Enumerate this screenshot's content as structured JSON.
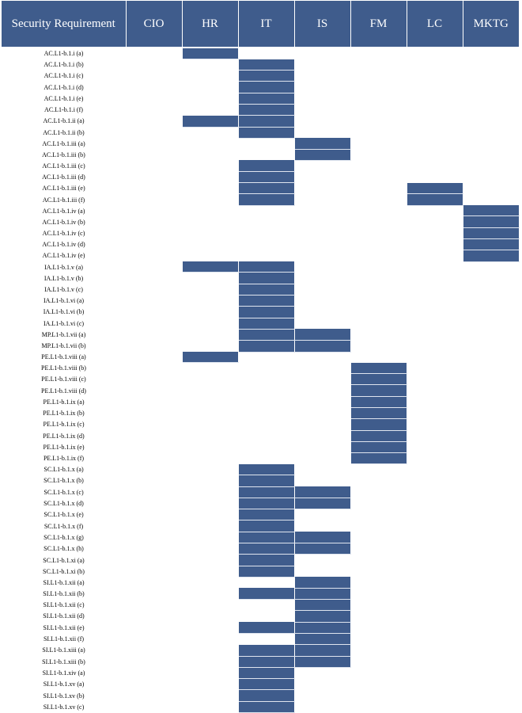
{
  "columns": [
    "Security Requirement",
    "CIO",
    "HR",
    "IT",
    "IS",
    "FM",
    "LC",
    "MKTG"
  ],
  "departments": [
    "CIO",
    "HR",
    "IT",
    "IS",
    "FM",
    "LC",
    "MKTG"
  ],
  "colors": {
    "header_bg": "#3f5c8c",
    "filled_cell": "#3f5c8c"
  },
  "rows": [
    {
      "req": "AC.L1-b.1.i (a)",
      "marks": [
        "HR"
      ]
    },
    {
      "req": "AC.L1-b.1.i (b)",
      "marks": [
        "IT"
      ]
    },
    {
      "req": "AC.L1-b.1.i (c)",
      "marks": [
        "IT"
      ]
    },
    {
      "req": "AC.L1-b.1.i (d)",
      "marks": [
        "IT"
      ]
    },
    {
      "req": "AC.L1-b.1.i (e)",
      "marks": [
        "IT"
      ]
    },
    {
      "req": "AC.L1-b.1.i (f)",
      "marks": [
        "IT"
      ]
    },
    {
      "req": "AC.L1-b.1.ii (a)",
      "marks": [
        "HR",
        "IT"
      ]
    },
    {
      "req": "AC.L1-b.1.ii (b)",
      "marks": [
        "IT"
      ]
    },
    {
      "req": "AC.L1-b.1.iii (a)",
      "marks": [
        "IS"
      ]
    },
    {
      "req": "AC.L1-b.1.iii (b)",
      "marks": [
        "IS"
      ]
    },
    {
      "req": "AC.L1-b.1.iii (c)",
      "marks": [
        "IT"
      ]
    },
    {
      "req": "AC.L1-b.1.iii (d)",
      "marks": [
        "IT"
      ]
    },
    {
      "req": "AC.L1-b.1.iii (e)",
      "marks": [
        "IT",
        "LC"
      ]
    },
    {
      "req": "AC.L1-b.1.iii (f)",
      "marks": [
        "IT",
        "LC"
      ]
    },
    {
      "req": "AC.L1-b.1.iv (a)",
      "marks": [
        "MKTG"
      ]
    },
    {
      "req": "AC.L1-b.1.iv (b)",
      "marks": [
        "MKTG"
      ]
    },
    {
      "req": "AC.L1-b.1.iv (c)",
      "marks": [
        "MKTG"
      ]
    },
    {
      "req": "AC.L1-b.1.iv (d)",
      "marks": [
        "MKTG"
      ]
    },
    {
      "req": "AC.L1-b.1.iv (e)",
      "marks": [
        "MKTG"
      ]
    },
    {
      "req": "IA.L1-b.1.v (a)",
      "marks": [
        "HR",
        "IT"
      ]
    },
    {
      "req": "IA.L1-b.1.v (b)",
      "marks": [
        "IT"
      ]
    },
    {
      "req": "IA.L1-b.1.v (c)",
      "marks": [
        "IT"
      ]
    },
    {
      "req": "IA.L1-b.1.vi (a)",
      "marks": [
        "IT"
      ]
    },
    {
      "req": "IA.L1-b.1.vi (b)",
      "marks": [
        "IT"
      ]
    },
    {
      "req": "IA.L1-b.1.vi (c)",
      "marks": [
        "IT"
      ]
    },
    {
      "req": "MP.L1-b.1.vii (a)",
      "marks": [
        "IT",
        "IS"
      ]
    },
    {
      "req": "MP.L1-b.1.vii (b)",
      "marks": [
        "IT",
        "IS"
      ]
    },
    {
      "req": "PE.L1-b.1.viii (a)",
      "marks": [
        "HR"
      ]
    },
    {
      "req": "PE.L1-b.1.viii (b)",
      "marks": [
        "FM"
      ]
    },
    {
      "req": "PE.L1-b.1.viii (c)",
      "marks": [
        "FM"
      ]
    },
    {
      "req": "PE.L1-b.1.viii (d)",
      "marks": [
        "FM"
      ]
    },
    {
      "req": "PE.L1-b.1.ix (a)",
      "marks": [
        "FM"
      ]
    },
    {
      "req": "PE.L1-b.1.ix (b)",
      "marks": [
        "FM"
      ]
    },
    {
      "req": "PE.L1-b.1.ix (c)",
      "marks": [
        "FM"
      ]
    },
    {
      "req": "PE.L1-b.1.ix (d)",
      "marks": [
        "FM"
      ]
    },
    {
      "req": "PE.L1-b.1.ix (e)",
      "marks": [
        "FM"
      ]
    },
    {
      "req": "PE.L1-b.1.ix (f)",
      "marks": [
        "FM"
      ]
    },
    {
      "req": "SC.L1-b.1.x (a)",
      "marks": [
        "IT"
      ]
    },
    {
      "req": "SC.L1-b.1.x (b)",
      "marks": [
        "IT"
      ]
    },
    {
      "req": "SC.L1-b.1.x (c)",
      "marks": [
        "IT",
        "IS"
      ]
    },
    {
      "req": "SC.L1-b.1.x (d)",
      "marks": [
        "IT",
        "IS"
      ]
    },
    {
      "req": "SC.L1-b.1.x (e)",
      "marks": [
        "IT"
      ]
    },
    {
      "req": "SC.L1-b.1.x (f)",
      "marks": [
        "IT"
      ]
    },
    {
      "req": "SC.L1-b.1.x (g)",
      "marks": [
        "IT",
        "IS"
      ]
    },
    {
      "req": "SC.L1-b.1.x (h)",
      "marks": [
        "IT",
        "IS"
      ]
    },
    {
      "req": "SC.L1-b.1.xi (a)",
      "marks": [
        "IT"
      ]
    },
    {
      "req": "SC.L1-b.1.xi (b)",
      "marks": [
        "IT"
      ]
    },
    {
      "req": "SI.L1-b.1.xii (a)",
      "marks": [
        "IS"
      ]
    },
    {
      "req": "SI.L1-b.1.xii (b)",
      "marks": [
        "IT",
        "IS"
      ]
    },
    {
      "req": "SI.L1-b.1.xii (c)",
      "marks": [
        "IS"
      ]
    },
    {
      "req": "SI.L1-b.1.xii (d)",
      "marks": [
        "IS"
      ]
    },
    {
      "req": "SI.L1-b.1.xii (e)",
      "marks": [
        "IT",
        "IS"
      ]
    },
    {
      "req": "SI.L1-b.1.xii (f)",
      "marks": [
        "IS"
      ]
    },
    {
      "req": "SI.L1-b.1.xiii (a)",
      "marks": [
        "IT",
        "IS"
      ]
    },
    {
      "req": "SI.L1-b.1.xiii (b)",
      "marks": [
        "IT",
        "IS"
      ]
    },
    {
      "req": "SI.L1-b.1.xiv (a)",
      "marks": [
        "IT"
      ]
    },
    {
      "req": "SI.L1-b.1.xv (a)",
      "marks": [
        "IT"
      ]
    },
    {
      "req": "SI.L1-b.1.xv (b)",
      "marks": [
        "IT"
      ]
    },
    {
      "req": "SI.L1-b.1.xv (c)",
      "marks": [
        "IT"
      ]
    }
  ]
}
